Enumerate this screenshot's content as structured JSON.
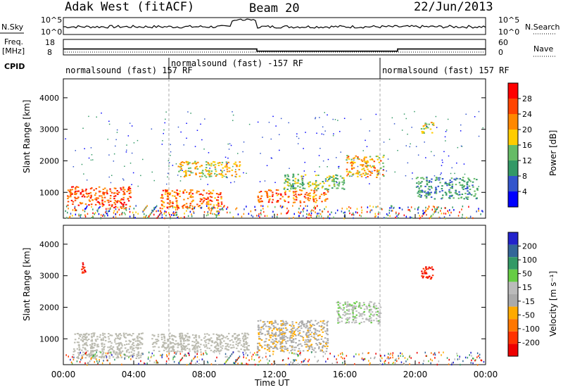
{
  "header": {
    "station": "Adak West (fitACF)",
    "beam": "Beam 20",
    "date": "22/Jun/2013"
  },
  "strips": {
    "nsky_label": "N.Sky",
    "nsearch_label": "N.Search",
    "noise_ticks": [
      "10^5",
      "10^0"
    ],
    "freq_label_1": "Freq.",
    "freq_label_2": "[MHz]",
    "freq_ticks": [
      "18",
      "8"
    ],
    "nave_label": "Nave",
    "nave_ticks": [
      "60",
      "0"
    ],
    "cpid_label": "CPID",
    "cpid_segments": [
      {
        "name": "normalsound (fast) 157 RF",
        "start_hour": 0,
        "end_hour": 6
      },
      {
        "name": "normalsound (fast) -157 RF",
        "start_hour": 6,
        "end_hour": 18
      },
      {
        "name": "normalsound (fast) 157 RF",
        "start_hour": 18,
        "end_hour": 24
      }
    ],
    "freq_mhz_segments": [
      {
        "start_hour": 0,
        "end_hour": 11,
        "value": 11.8
      },
      {
        "start_hour": 11,
        "end_hour": 19,
        "value": 10.4
      },
      {
        "start_hour": 19,
        "end_hour": 24,
        "value": 11.8
      }
    ]
  },
  "colors": {
    "power_scale": [
      "#0000ff",
      "#3355cc",
      "#339966",
      "#66bb66",
      "#ffcc00",
      "#ff8800",
      "#ff4400",
      "#ff0000"
    ],
    "velocity_scale": [
      "#2222cc",
      "#336699",
      "#339966",
      "#66cc44",
      "#bbbbbb",
      "#aaaaaa",
      "#ffaa00",
      "#ff7700",
      "#ff3300",
      "#ee0000"
    ],
    "ground_scatter": "#bbbbb0"
  },
  "chart_data": [
    {
      "type": "heatmap",
      "name": "power",
      "ylabel": "Slant Range [km]",
      "xlabel": "",
      "ylim": [
        180,
        4600
      ],
      "xlim_hours": [
        0,
        24
      ],
      "yticks": [
        "4000",
        "3000",
        "2000",
        "1000"
      ],
      "colorbar": {
        "label": "Power [dB]",
        "ticks": [
          "28",
          "24",
          "20",
          "16",
          "12",
          "8",
          "4"
        ],
        "range": [
          0,
          32
        ]
      },
      "echo_regions": [
        {
          "hours": [
            0.2,
            2.0
          ],
          "range_km": [
            600,
            1200
          ],
          "level_db": 26
        },
        {
          "hours": [
            2.0,
            3.8
          ],
          "range_km": [
            500,
            1200
          ],
          "level_db": 26
        },
        {
          "hours": [
            5.5,
            9.0
          ],
          "range_km": [
            500,
            1100
          ],
          "level_db": 24
        },
        {
          "hours": [
            6.5,
            10.0
          ],
          "range_km": [
            1500,
            2000
          ],
          "level_db": 18
        },
        {
          "hours": [
            11.0,
            15.0
          ],
          "range_km": [
            700,
            1100
          ],
          "level_db": 24
        },
        {
          "hours": [
            12.5,
            16.0
          ],
          "range_km": [
            1100,
            1600
          ],
          "level_db": 14
        },
        {
          "hours": [
            16.0,
            18.2
          ],
          "range_km": [
            1500,
            2200
          ],
          "level_db": 20
        },
        {
          "hours": [
            20.0,
            23.5
          ],
          "range_km": [
            800,
            1500
          ],
          "level_db": 10
        },
        {
          "hours": [
            20.3,
            21.0
          ],
          "range_km": [
            2900,
            3300
          ],
          "level_db": 16
        }
      ]
    },
    {
      "type": "heatmap",
      "name": "velocity",
      "ylabel": "Slant Range [km]",
      "xlabel": "Time UT",
      "ylim": [
        180,
        4600
      ],
      "xlim_hours": [
        0,
        24
      ],
      "yticks": [
        "4000",
        "3000",
        "2000",
        "1000"
      ],
      "xticks": [
        "00:00",
        "04:00",
        "08:00",
        "12:00",
        "16:00",
        "20:00",
        "00:00"
      ],
      "colorbar": {
        "label": "Velocity [m s⁻¹]",
        "ticks": [
          "200",
          "100",
          "50",
          "15",
          "-15",
          "-50",
          "-100",
          "-200"
        ],
        "range": [
          -250,
          250
        ]
      },
      "echo_regions": [
        {
          "hours": [
            0.5,
            4.5
          ],
          "range_km": [
            400,
            1200
          ],
          "velocity": 0
        },
        {
          "hours": [
            5.0,
            10.5
          ],
          "range_km": [
            600,
            1200
          ],
          "velocity": 0
        },
        {
          "hours": [
            11.0,
            15.0
          ],
          "range_km": [
            600,
            1600
          ],
          "velocity": -40
        },
        {
          "hours": [
            15.5,
            18.0
          ],
          "range_km": [
            1500,
            2200
          ],
          "velocity": 40
        },
        {
          "hours": [
            1.0,
            1.3
          ],
          "range_km": [
            3100,
            3500
          ],
          "velocity": -200
        },
        {
          "hours": [
            20.3,
            21.0
          ],
          "range_km": [
            2900,
            3300
          ],
          "velocity": -200
        }
      ]
    }
  ]
}
